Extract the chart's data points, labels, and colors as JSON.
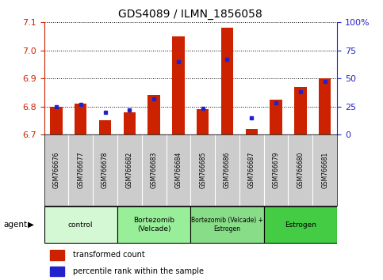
{
  "title": "GDS4089 / ILMN_1856058",
  "samples": [
    "GSM766676",
    "GSM766677",
    "GSM766678",
    "GSM766682",
    "GSM766683",
    "GSM766684",
    "GSM766685",
    "GSM766686",
    "GSM766687",
    "GSM766679",
    "GSM766680",
    "GSM766681"
  ],
  "red_values": [
    6.8,
    6.81,
    6.75,
    6.778,
    6.84,
    7.05,
    6.79,
    7.08,
    6.72,
    6.825,
    6.87,
    6.9
  ],
  "blue_values_pct": [
    25,
    27,
    20,
    22,
    32,
    65,
    23,
    67,
    15,
    28,
    38,
    47
  ],
  "y_min": 6.7,
  "y_max": 7.1,
  "y_ticks": [
    6.7,
    6.8,
    6.9,
    7.0,
    7.1
  ],
  "y2_ticks": [
    0,
    25,
    50,
    75,
    100
  ],
  "y2_labels": [
    "0",
    "25",
    "50",
    "75",
    "100%"
  ],
  "groups": [
    {
      "label": "control",
      "start": 0,
      "end": 3,
      "color": "#d4f7d4"
    },
    {
      "label": "Bortezomib\n(Velcade)",
      "start": 3,
      "end": 6,
      "color": "#99ee99"
    },
    {
      "label": "Bortezomib (Velcade) +\nEstrogen",
      "start": 6,
      "end": 9,
      "color": "#88dd88"
    },
    {
      "label": "Estrogen",
      "start": 9,
      "end": 12,
      "color": "#44cc44"
    }
  ],
  "bar_color": "#cc2200",
  "dot_color": "#2222cc",
  "bar_width": 0.5,
  "base": 6.7,
  "legend_items": [
    "transformed count",
    "percentile rank within the sample"
  ]
}
